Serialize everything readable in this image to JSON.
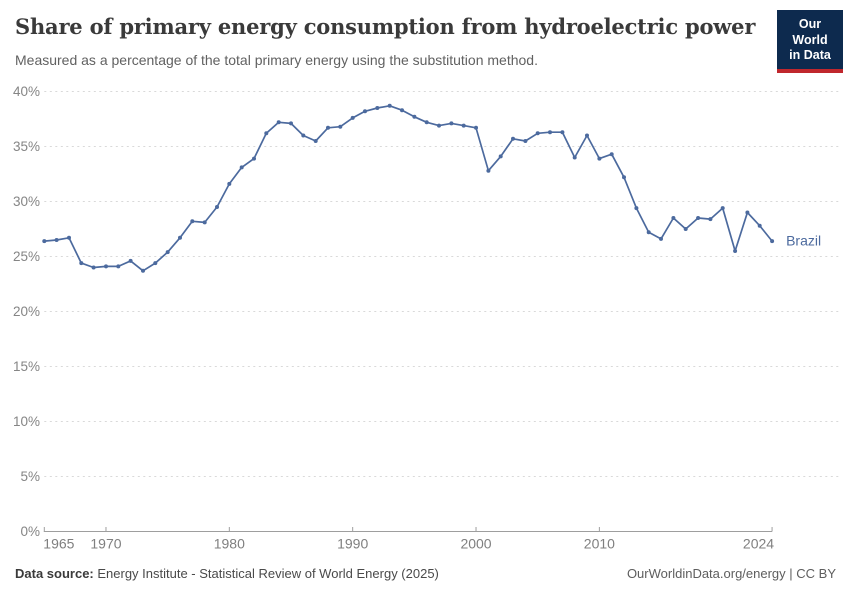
{
  "header": {
    "title": "Share of primary energy consumption from hydroelectric power",
    "subtitle": "Measured as a percentage of the total primary energy using the substitution method.",
    "logo": {
      "line1": "Our World",
      "line2": "in Data",
      "bg_color": "#0d2a4e",
      "accent_color": "#c0272d"
    }
  },
  "chart_data": {
    "type": "line",
    "title": "Share of primary energy consumption from hydroelectric power",
    "xlabel": "",
    "ylabel": "",
    "ylim": [
      0,
      40
    ],
    "xlim": [
      1965,
      2024
    ],
    "grid": "horizontal-dashed",
    "legend_position": "end-of-line-label",
    "ytick_values": [
      0,
      5,
      10,
      15,
      20,
      25,
      30,
      35,
      40
    ],
    "ytick_labels": [
      "0%",
      "5%",
      "10%",
      "15%",
      "20%",
      "25%",
      "30%",
      "35%",
      "40%"
    ],
    "xtick_values": [
      1965,
      1970,
      1980,
      1990,
      2000,
      2010,
      2024
    ],
    "xtick_labels": [
      "1965",
      "1970",
      "1980",
      "1990",
      "2000",
      "2010",
      "2024"
    ],
    "series": [
      {
        "name": "Brazil",
        "end_label": "Brazil",
        "color": "#4c6a9e",
        "x": [
          1965,
          1966,
          1967,
          1968,
          1969,
          1970,
          1971,
          1972,
          1973,
          1974,
          1975,
          1976,
          1977,
          1978,
          1979,
          1980,
          1981,
          1982,
          1983,
          1984,
          1985,
          1986,
          1987,
          1988,
          1989,
          1990,
          1991,
          1992,
          1993,
          1994,
          1995,
          1996,
          1997,
          1998,
          1999,
          2000,
          2001,
          2002,
          2003,
          2004,
          2005,
          2006,
          2007,
          2008,
          2009,
          2010,
          2011,
          2012,
          2013,
          2014,
          2015,
          2016,
          2017,
          2018,
          2019,
          2020,
          2021,
          2022,
          2023,
          2024
        ],
        "values": [
          26.4,
          26.5,
          26.7,
          24.4,
          24.0,
          24.1,
          24.1,
          24.6,
          23.7,
          24.4,
          25.4,
          26.7,
          28.2,
          28.1,
          29.5,
          31.6,
          33.1,
          33.9,
          36.2,
          37.2,
          37.1,
          36.0,
          35.5,
          36.7,
          36.8,
          37.6,
          38.2,
          38.5,
          38.7,
          38.3,
          37.7,
          37.2,
          36.9,
          37.1,
          36.9,
          36.7,
          32.8,
          34.1,
          35.7,
          35.5,
          36.2,
          36.3,
          36.3,
          34.0,
          36.0,
          33.9,
          34.3,
          32.2,
          29.4,
          27.2,
          26.6,
          28.5,
          27.5,
          28.5,
          28.4,
          29.4,
          25.5,
          29.0,
          27.8,
          26.4
        ]
      }
    ],
    "style": {
      "gridline_color": "#d9d9d9",
      "axis_color": "#9e9e9e",
      "tick_label_color": "#858585"
    }
  },
  "footer": {
    "source_prefix": "Data source:",
    "source_text": " Energy Institute - Statistical Review of World Energy (2025)",
    "credit": "OurWorldinData.org/energy | CC BY"
  }
}
